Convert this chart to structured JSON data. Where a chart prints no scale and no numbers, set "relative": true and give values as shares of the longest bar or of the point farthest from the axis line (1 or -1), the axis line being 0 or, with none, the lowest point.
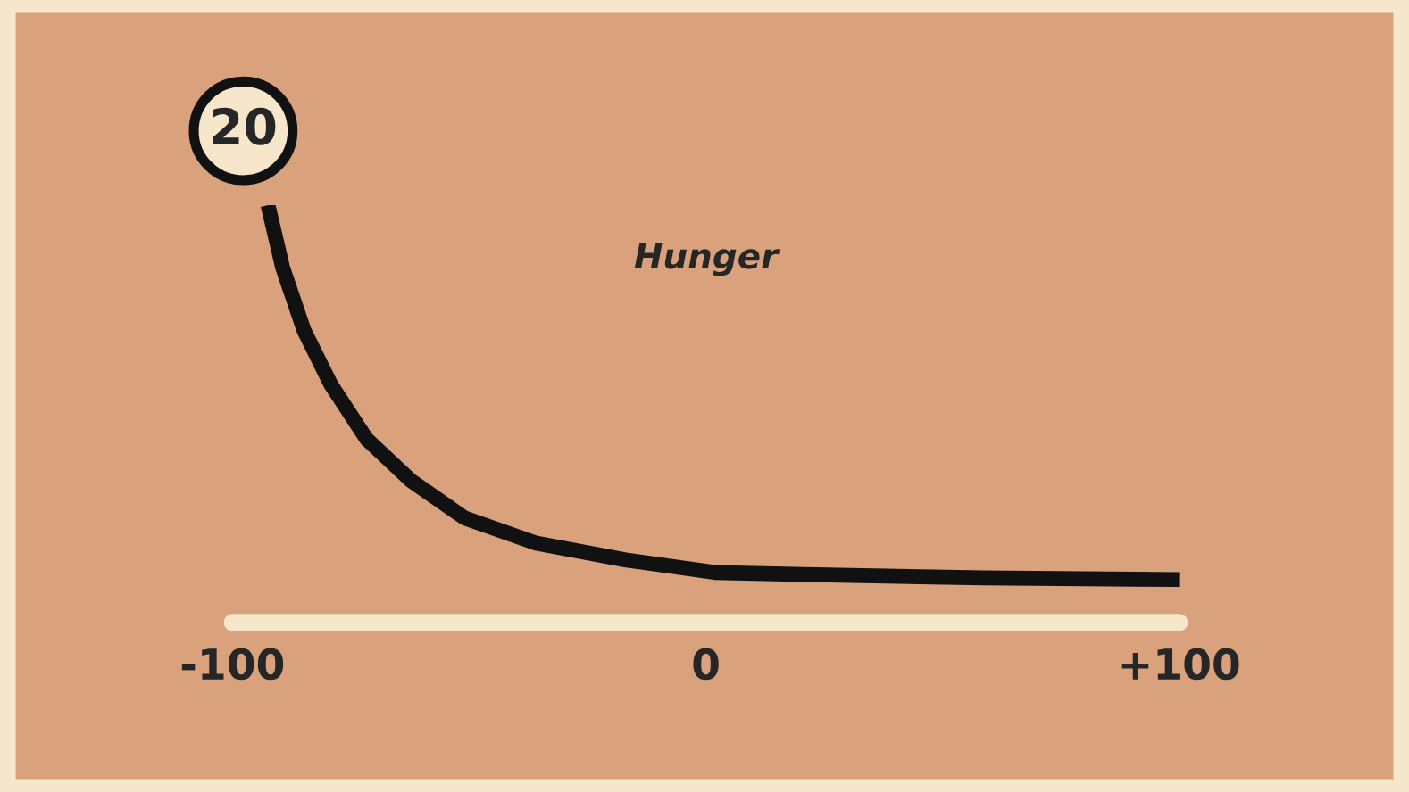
{
  "chart_data": {
    "type": "line",
    "title": "Hunger",
    "relative": true,
    "x": [
      -92.5,
      -89.4,
      -84.9,
      -79.2,
      -71.7,
      -62.3,
      -50.9,
      -35.8,
      -17.0,
      1.9,
      20.8,
      58.5,
      100
    ],
    "series": [
      {
        "color": "#111111",
        "values": [
          1,
          0.85,
          0.7,
          0.57,
          0.44,
          0.34,
          0.25,
          0.19,
          0.15,
          0.12,
          0.115,
          0.107,
          0.103
        ]
      }
    ],
    "xlim": [
      -100,
      100
    ],
    "xticks": [
      -100,
      0,
      {
        "value": 100,
        "label": "+100"
      }
    ],
    "annotations": [
      {
        "text": "20",
        "x": -92.5,
        "y": 1
      }
    ],
    "grid": false,
    "legend": false,
    "marker": "none",
    "line_style": "solid"
  }
}
